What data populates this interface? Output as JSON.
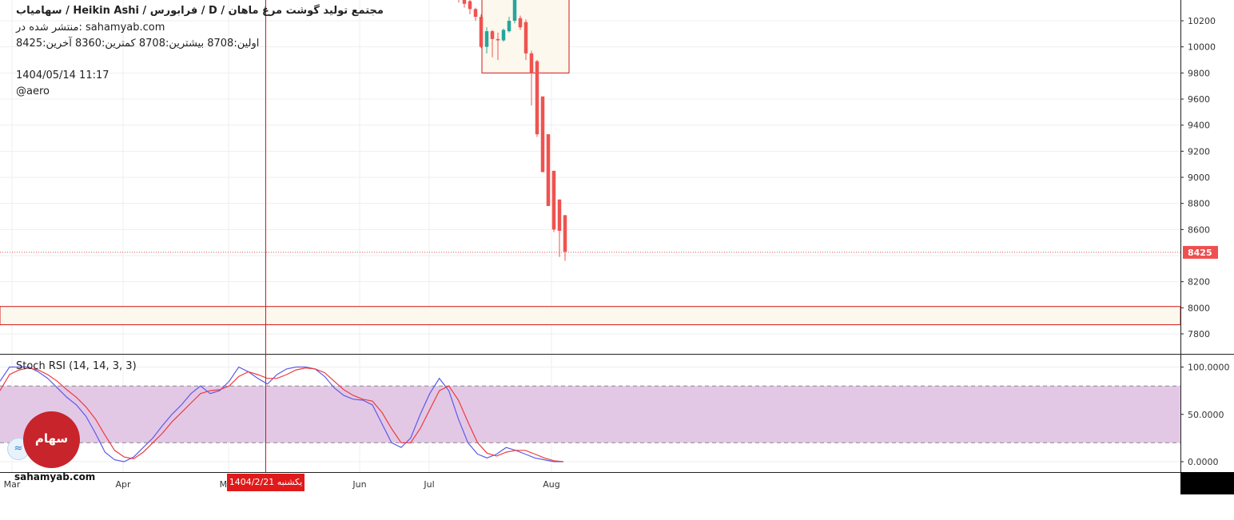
{
  "header": {
    "title": "مجتمع تولید گوشت مرغ ماهان /  D  /  فرابورس  /  Heikin Ashi / سهامیاب",
    "published": "منتشر شده در: sahamyab.com",
    "ohlc": "اولین:8708  بیشترین:8708  کمترین:8360  آخرین:8425",
    "datetime": "1404/05/14 11:17",
    "author": "@aero"
  },
  "indicator": {
    "label": "Stoch RSI (14, 14, 3, 3)"
  },
  "branding": {
    "logo_text": "سهام یاب",
    "site": "sahamyab.com"
  },
  "crosshair": {
    "date_label": "یکشنبه  1404/2/21"
  },
  "colors": {
    "up": "#26a69a",
    "down": "#ef5350",
    "k_line": "#5b5be8",
    "d_line": "#ef3b3b",
    "band": "#e3c8e6",
    "zone_fill": "#fdf8ee",
    "zone_border": "#d01818",
    "crosshair": "#d01818"
  },
  "chart_data": [
    {
      "type": "candlestick",
      "title": "Heikin Ashi",
      "ylim": [
        7700,
        10400
      ],
      "y_ticks": [
        10200,
        10000,
        9800,
        9600,
        9400,
        9200,
        9000,
        8800,
        8600,
        8400,
        8200,
        8000,
        7800
      ],
      "last_price": 8425,
      "price_zones": [
        {
          "name": "resistance-box",
          "low": 9800,
          "high": 10400
        },
        {
          "name": "support-zone",
          "low": 7870,
          "high": 8010
        }
      ],
      "candles": [
        {
          "o": 10390,
          "h": 10420,
          "l": 10340,
          "c": 10370
        },
        {
          "o": 10370,
          "h": 10400,
          "l": 10300,
          "c": 10330
        },
        {
          "o": 10350,
          "h": 10380,
          "l": 10250,
          "c": 10290
        },
        {
          "o": 10290,
          "h": 10300,
          "l": 10200,
          "c": 10230
        },
        {
          "o": 10230,
          "h": 10250,
          "l": 9990,
          "c": 10000
        },
        {
          "o": 10000,
          "h": 10150,
          "l": 9950,
          "c": 10120
        },
        {
          "o": 10120,
          "h": 10130,
          "l": 9920,
          "c": 10060
        },
        {
          "o": 10060,
          "h": 10110,
          "l": 9900,
          "c": 10050
        },
        {
          "o": 10050,
          "h": 10140,
          "l": 10040,
          "c": 10130
        },
        {
          "o": 10120,
          "h": 10230,
          "l": 10110,
          "c": 10200
        },
        {
          "o": 10200,
          "h": 10400,
          "l": 10180,
          "c": 10370
        },
        {
          "o": 10220,
          "h": 10240,
          "l": 10130,
          "c": 10150
        },
        {
          "o": 10190,
          "h": 10210,
          "l": 9900,
          "c": 9950
        },
        {
          "o": 9950,
          "h": 9970,
          "l": 9550,
          "c": 9800
        },
        {
          "o": 9890,
          "h": 9900,
          "l": 9310,
          "c": 9330
        },
        {
          "o": 9620,
          "h": 9620,
          "l": 9040,
          "c": 9040
        },
        {
          "o": 9330,
          "h": 9330,
          "l": 8780,
          "c": 8780
        },
        {
          "o": 9050,
          "h": 9050,
          "l": 8580,
          "c": 8600
        },
        {
          "o": 8830,
          "h": 8830,
          "l": 8390,
          "c": 8590
        },
        {
          "o": 8710,
          "h": 8710,
          "l": 8360,
          "c": 8430
        }
      ],
      "x_labels": [
        "Mar",
        "Apr",
        "May",
        "Jun",
        "Jul",
        "Aug"
      ]
    },
    {
      "type": "line",
      "title": "Stoch RSI (14, 14, 3, 3)",
      "ylim": [
        -8,
        108
      ],
      "y_ticks": [
        "100.0000",
        "50.0000",
        "0.0000"
      ],
      "bands": [
        20,
        80
      ],
      "x": [
        0,
        1,
        2,
        3,
        4,
        5,
        6,
        7,
        8,
        9,
        10,
        11,
        12,
        13,
        14,
        15,
        16,
        17,
        18,
        19,
        20,
        21,
        22,
        23,
        24,
        25,
        26,
        27,
        28,
        29,
        30,
        31,
        32,
        33,
        34,
        35,
        36,
        37,
        38,
        39,
        40,
        41,
        42,
        43,
        44,
        45,
        46,
        47,
        48,
        49,
        50,
        51,
        52,
        53,
        54,
        55,
        56,
        57,
        58,
        59
      ],
      "series": [
        {
          "name": "K",
          "values": [
            85,
            100,
            100,
            100,
            95,
            88,
            78,
            68,
            60,
            48,
            30,
            10,
            2,
            0,
            5,
            15,
            25,
            38,
            50,
            60,
            72,
            80,
            72,
            75,
            85,
            100,
            95,
            88,
            82,
            92,
            98,
            100,
            100,
            98,
            90,
            78,
            70,
            66,
            65,
            60,
            40,
            20,
            15,
            25,
            50,
            72,
            88,
            75,
            45,
            20,
            8,
            4,
            8,
            15,
            12,
            8,
            4,
            2,
            0,
            0
          ]
        },
        {
          "name": "D",
          "values": [
            75,
            92,
            97,
            99,
            97,
            92,
            85,
            76,
            68,
            58,
            45,
            28,
            12,
            5,
            3,
            10,
            20,
            30,
            42,
            52,
            62,
            72,
            75,
            76,
            80,
            90,
            95,
            92,
            88,
            88,
            92,
            97,
            99,
            98,
            94,
            85,
            76,
            70,
            66,
            64,
            52,
            35,
            20,
            20,
            35,
            55,
            75,
            80,
            65,
            42,
            20,
            9,
            6,
            10,
            12,
            12,
            8,
            4,
            1,
            0
          ]
        }
      ]
    }
  ]
}
